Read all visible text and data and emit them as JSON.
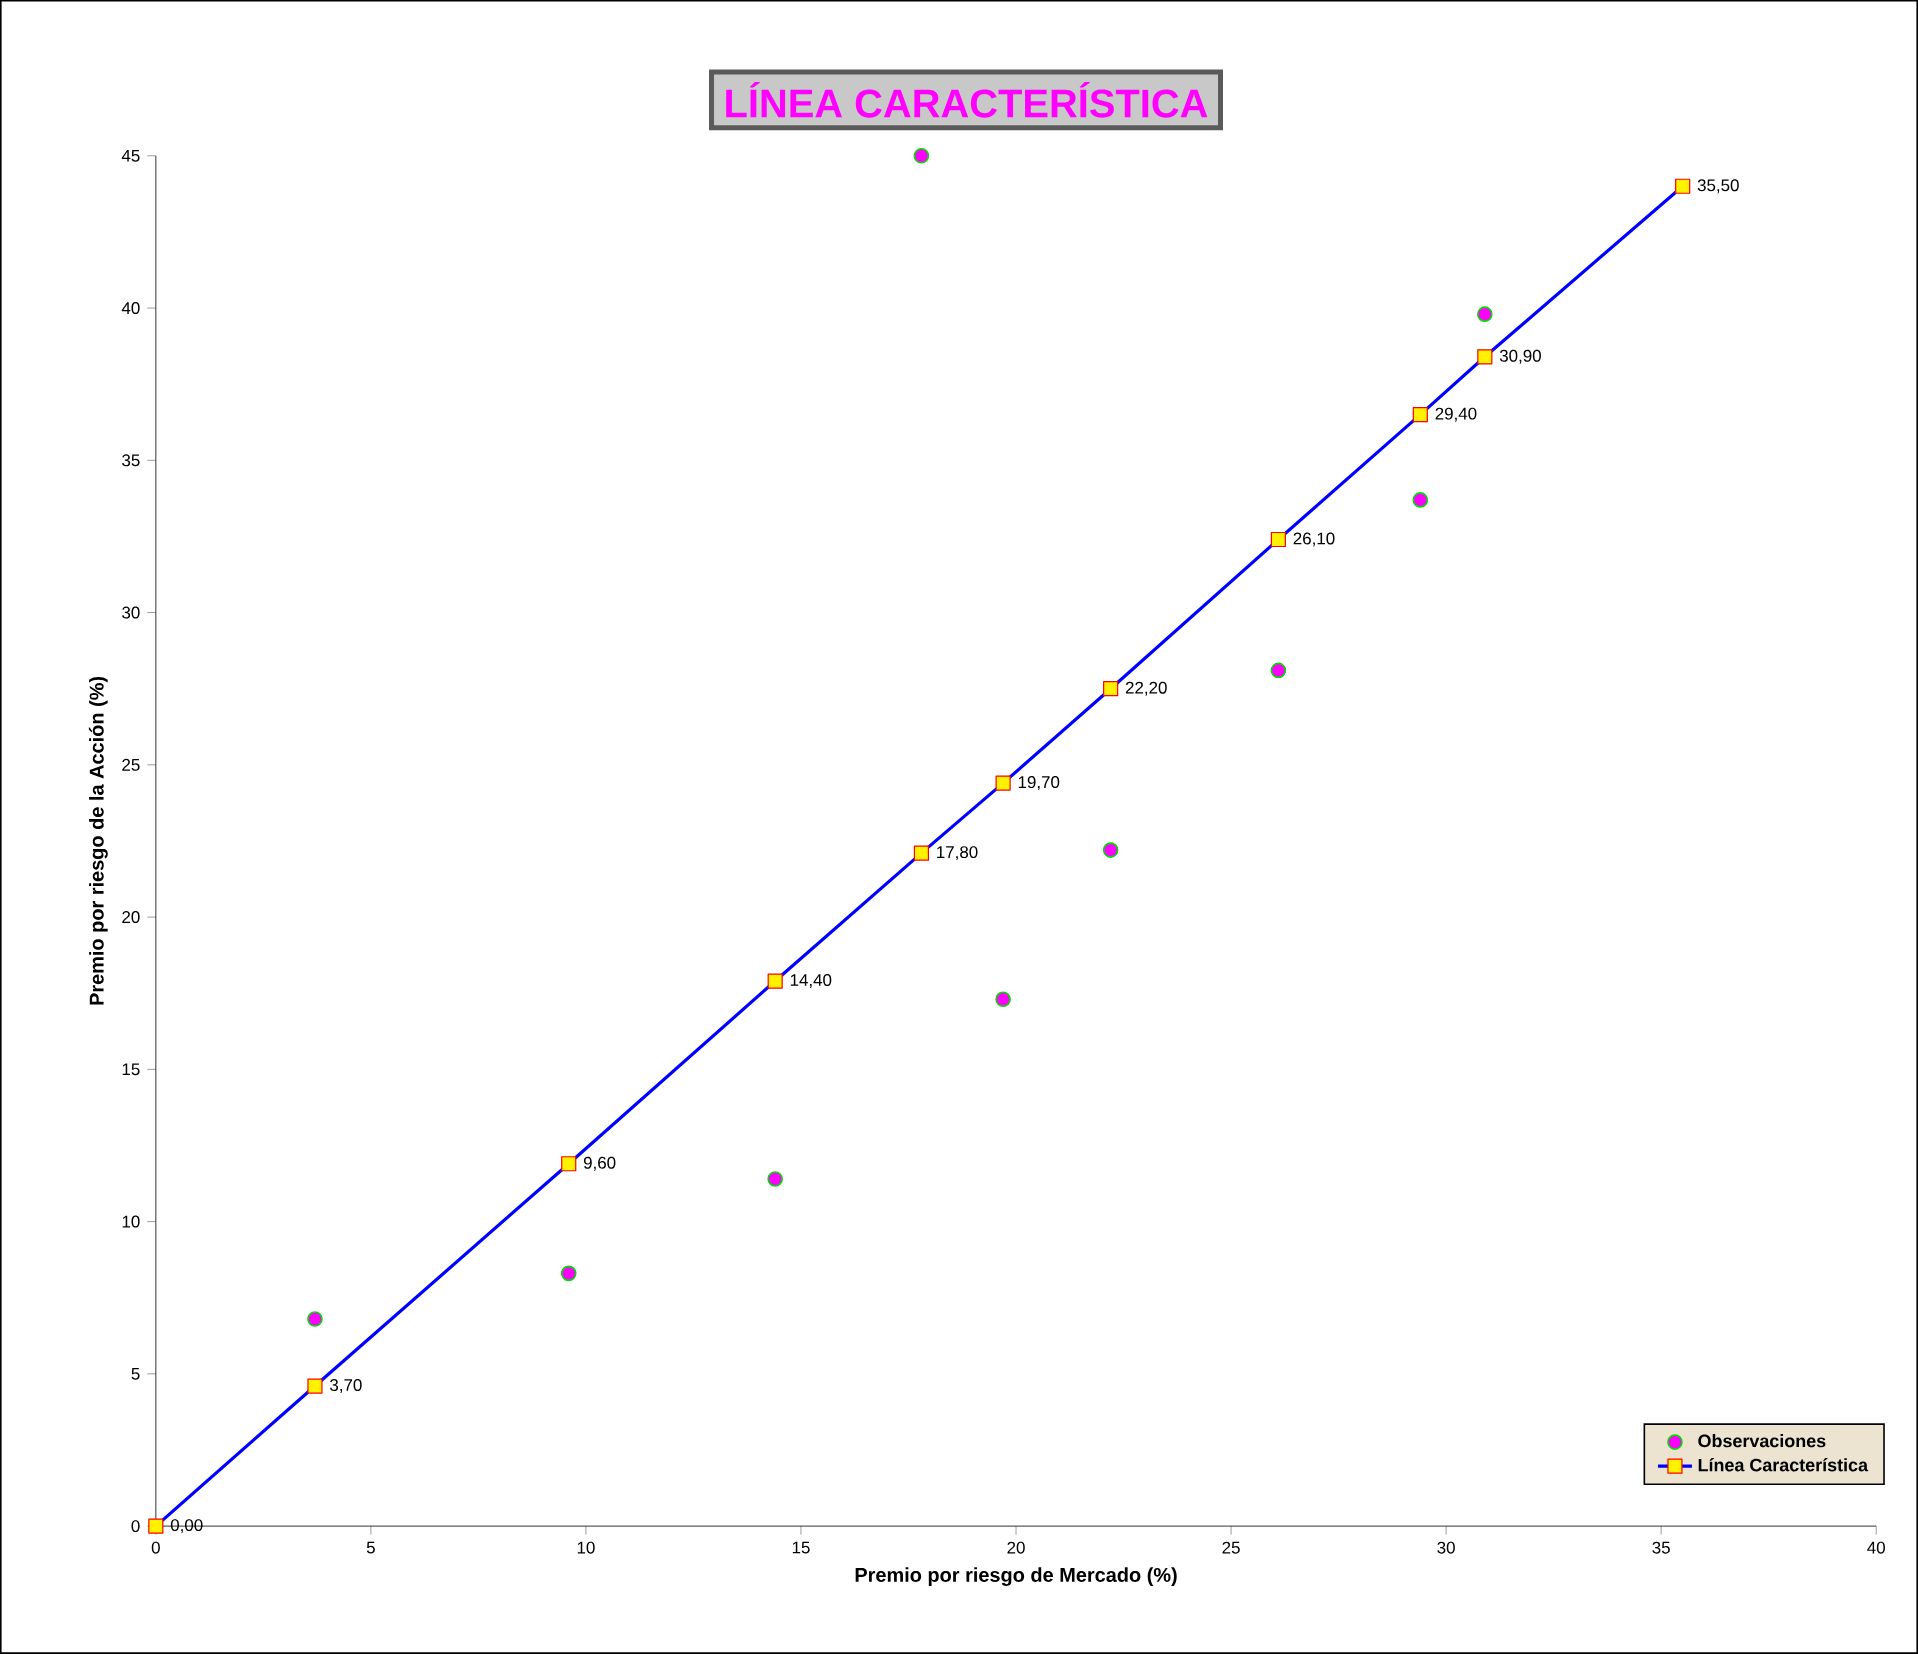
{
  "chart_data": {
    "type": "scatter",
    "title": "LÍNEA CARACTERÍSTICA",
    "xlabel": "Premio por riesgo de Mercado (%)",
    "ylabel": "Premio por riesgo de la Acción (%)",
    "xlim": [
      0,
      40
    ],
    "ylim": [
      0,
      45
    ],
    "xticks": [
      0,
      5,
      10,
      15,
      20,
      25,
      30,
      35,
      40
    ],
    "yticks": [
      0,
      5,
      10,
      15,
      20,
      25,
      30,
      35,
      40,
      45
    ],
    "grid": false,
    "legend": "bottom right",
    "series": [
      {
        "name": "Observaciones",
        "marker": "circle",
        "color": "#ff00ff",
        "x": [
          3.7,
          9.6,
          14.4,
          17.8,
          19.7,
          22.2,
          26.1,
          29.4,
          30.9
        ],
        "values": [
          6.8,
          8.3,
          11.4,
          45.0,
          17.3,
          22.2,
          28.1,
          33.7,
          39.8
        ]
      },
      {
        "name": "Línea Característica",
        "type": "line",
        "marker": "square",
        "color": "#0000ff",
        "x": [
          0,
          3.7,
          9.6,
          14.4,
          17.8,
          19.7,
          22.2,
          26.1,
          29.4,
          30.9,
          35.5
        ],
        "values": [
          0,
          4.6,
          11.9,
          17.9,
          22.1,
          24.4,
          27.5,
          32.4,
          36.5,
          38.4,
          44.0
        ]
      }
    ],
    "annotations": [
      {
        "text": "0,00",
        "x": 0,
        "y": 0
      },
      {
        "text": "3,70",
        "x": 3.7,
        "y": 4.6
      },
      {
        "text": "9,60",
        "x": 9.6,
        "y": 11.9
      },
      {
        "text": "14,40",
        "x": 14.4,
        "y": 17.9
      },
      {
        "text": "17,80",
        "x": 17.8,
        "y": 22.1
      },
      {
        "text": "19,70",
        "x": 19.7,
        "y": 24.4
      },
      {
        "text": "22,20",
        "x": 22.2,
        "y": 27.5
      },
      {
        "text": "26,10",
        "x": 26.1,
        "y": 32.4
      },
      {
        "text": "29,40",
        "x": 29.4,
        "y": 36.5
      },
      {
        "text": "30,90",
        "x": 30.9,
        "y": 38.4
      },
      {
        "text": "35,50",
        "x": 35.5,
        "y": 44.0
      }
    ]
  }
}
